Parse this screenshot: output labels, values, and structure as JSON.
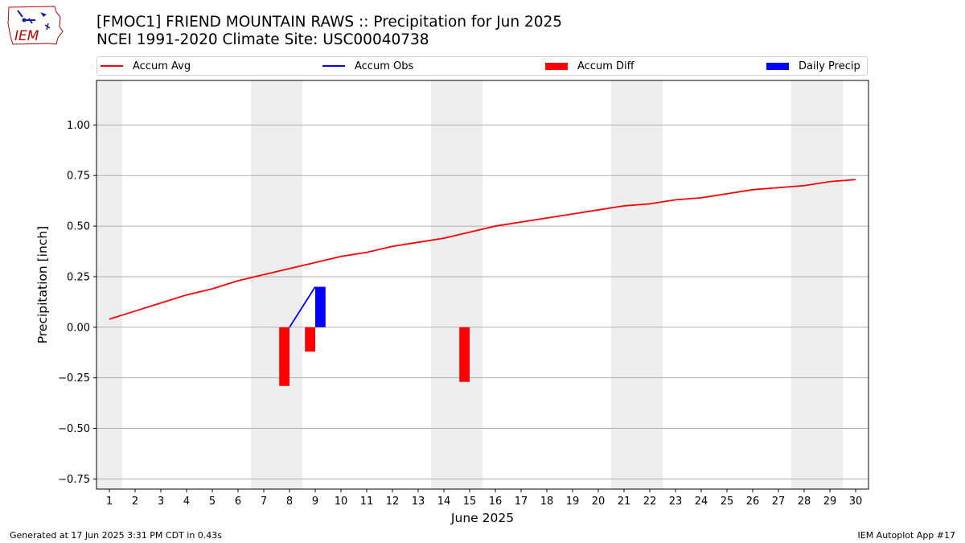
{
  "header": {
    "title_line1": "[FMOC1] FRIEND MOUNTAIN RAWS :: Precipitation for Jun 2025",
    "title_line2": "NCEI 1991-2020 Climate Site: USC00040738"
  },
  "logo": {
    "text": "IEM",
    "icon": "iem-iowa-logo"
  },
  "footer": {
    "left": "Generated at 17 Jun 2025 3:31 PM CDT in 0.43s",
    "right": "IEM Autoplot App #17"
  },
  "colors": {
    "accum_avg": "#ff0000",
    "accum_obs": "#0000ff",
    "accum_diff": "#ff0000",
    "daily_precip": "#0000ff",
    "weekend_shade": "#eeeeee",
    "grid": "#b0b0b0"
  },
  "chart_data": {
    "type": "line",
    "xlabel": "June 2025",
    "ylabel": "Precipitation [inch]",
    "x_categories": [
      "1",
      "2",
      "3",
      "4",
      "5",
      "6",
      "7",
      "8",
      "9",
      "10",
      "11",
      "12",
      "13",
      "14",
      "15",
      "16",
      "17",
      "18",
      "19",
      "20",
      "21",
      "22",
      "23",
      "24",
      "25",
      "26",
      "27",
      "28",
      "29",
      "30"
    ],
    "xlim": [
      0.5,
      30.5
    ],
    "ylim": [
      -0.8,
      1.22
    ],
    "yticks": [
      -0.75,
      -0.5,
      -0.25,
      0.0,
      0.25,
      0.5,
      0.75,
      1.0
    ],
    "ytick_labels": [
      "−0.75",
      "−0.50",
      "−0.25",
      "0.00",
      "0.25",
      "0.50",
      "0.75",
      "1.00"
    ],
    "grid": "horizontal",
    "legend_position": "top",
    "weekend_shading": [
      [
        0.5,
        1.5
      ],
      [
        6.5,
        8.5
      ],
      [
        13.5,
        15.5
      ],
      [
        20.5,
        22.5
      ],
      [
        27.5,
        29.5
      ]
    ],
    "legend": [
      "Accum Avg",
      "Accum Obs",
      "Accum Diff",
      "Daily Precip"
    ],
    "series": [
      {
        "name": "Accum Avg",
        "kind": "line",
        "x": [
          1,
          2,
          3,
          4,
          5,
          6,
          7,
          8,
          9,
          10,
          11,
          12,
          13,
          14,
          15,
          16,
          17,
          18,
          19,
          20,
          21,
          22,
          23,
          24,
          25,
          26,
          27,
          28,
          29,
          30
        ],
        "values": [
          0.04,
          0.08,
          0.12,
          0.16,
          0.19,
          0.23,
          0.26,
          0.29,
          0.32,
          0.35,
          0.37,
          0.4,
          0.42,
          0.44,
          0.47,
          0.5,
          0.52,
          0.54,
          0.56,
          0.58,
          0.6,
          0.61,
          0.63,
          0.64,
          0.66,
          0.68,
          0.69,
          0.7,
          0.72,
          0.73
        ]
      },
      {
        "name": "Accum Obs",
        "kind": "line",
        "x": [
          8,
          9
        ],
        "values": [
          0.0,
          0.2
        ]
      },
      {
        "name": "Accum Diff",
        "kind": "bar",
        "x": [
          8,
          9,
          15
        ],
        "values": [
          -0.29,
          -0.12,
          -0.27
        ]
      },
      {
        "name": "Daily Precip",
        "kind": "bar",
        "x": [
          9
        ],
        "values": [
          0.2
        ]
      }
    ]
  }
}
